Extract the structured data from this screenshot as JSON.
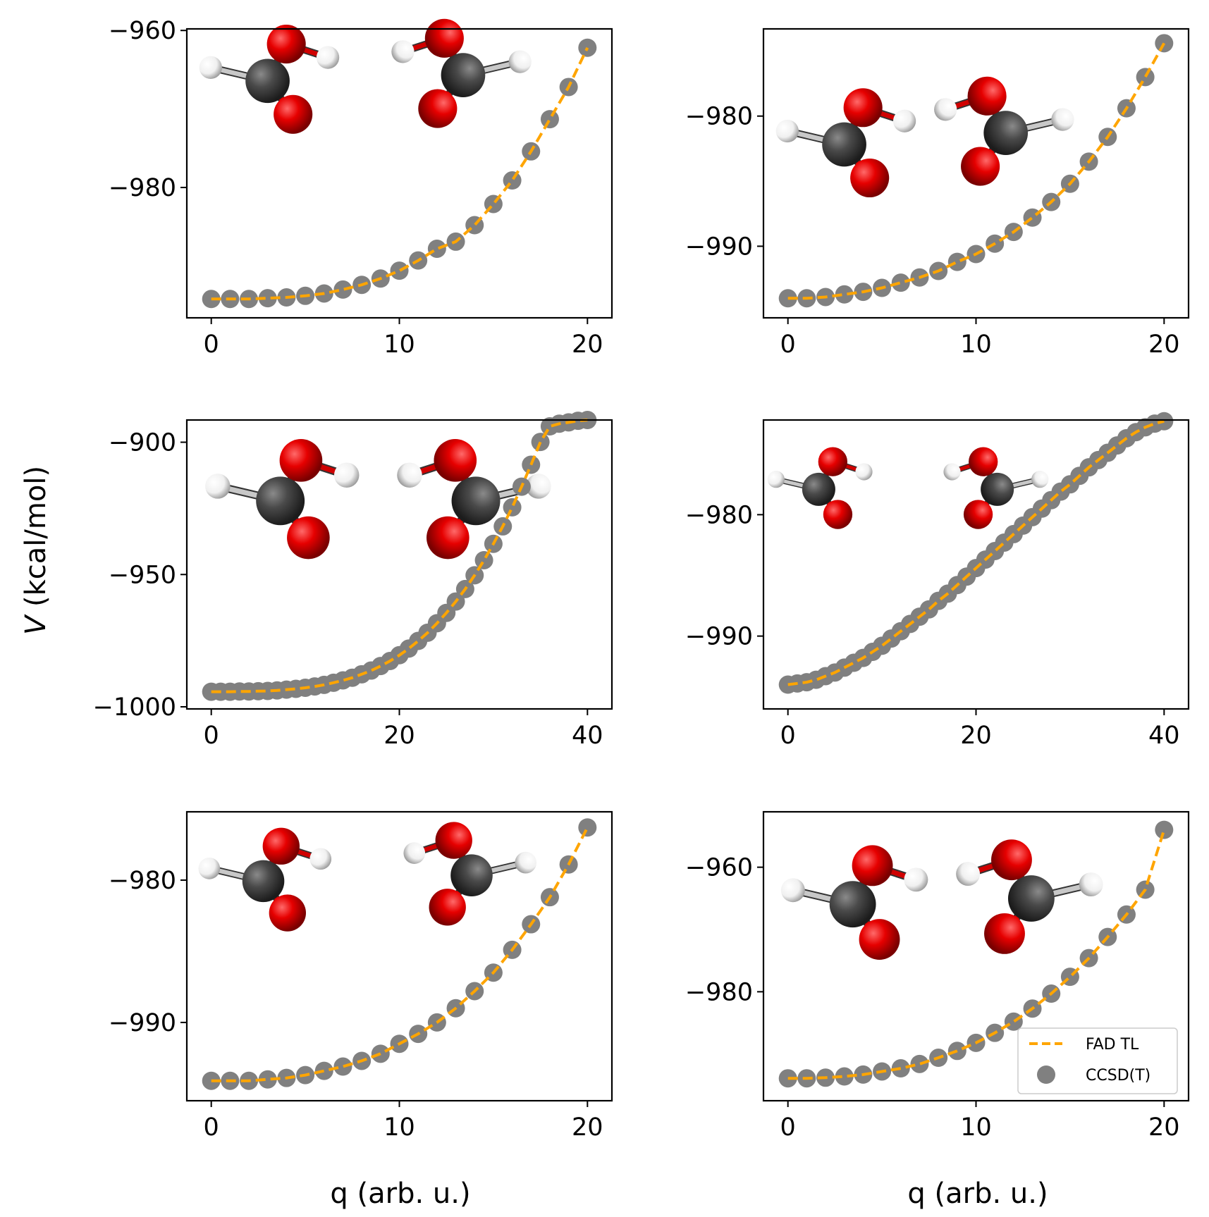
{
  "figure": {
    "ylabel_var": "V",
    "ylabel_units": " (kcal/mol)",
    "xlabel": "q (arb. u.)"
  },
  "colors": {
    "fit_line": "#FFA500",
    "ccsd_marker": "#808080",
    "carbon": "#4a4a4a",
    "oxygen": "#e60000",
    "hydrogen": "#f0f0f0"
  },
  "legend": {
    "items": [
      {
        "label": "FAD TL",
        "kind": "dashed-line"
      },
      {
        "label": "CCSD(T)",
        "kind": "marker"
      }
    ]
  },
  "chart_data": [
    {
      "type": "line",
      "panel": "top-left",
      "xlim": [
        -1.3,
        21.3
      ],
      "ylim": [
        -996.6,
        -959.8
      ],
      "xticks": [
        0,
        10,
        20
      ],
      "yticks": [
        -980,
        -960
      ],
      "x": [
        0,
        1,
        2,
        3,
        4,
        5,
        6,
        7,
        8,
        9,
        10,
        11,
        12,
        13,
        14,
        15,
        16,
        17,
        18,
        19,
        20
      ],
      "series": [
        {
          "name": "FAD TL",
          "style": "dashed",
          "values": [
            -994.2,
            -994.2,
            -994.2,
            -994.1,
            -994.0,
            -993.8,
            -993.5,
            -993.0,
            -992.4,
            -991.6,
            -990.6,
            -989.3,
            -987.8,
            -986.9,
            -984.8,
            -982.1,
            -979.1,
            -975.4,
            -971.3,
            -967.2,
            -962.2
          ]
        },
        {
          "name": "CCSD(T)",
          "style": "marker",
          "values": [
            -994.2,
            -994.2,
            -994.2,
            -994.1,
            -994.0,
            -993.8,
            -993.5,
            -993.0,
            -992.4,
            -991.6,
            -990.6,
            -989.3,
            -987.8,
            -986.9,
            -984.8,
            -982.1,
            -979.1,
            -975.4,
            -971.3,
            -967.2,
            -962.2
          ]
        }
      ],
      "molecules": [
        {
          "cx": 0.19,
          "cy": 0.18,
          "scale": 1.0,
          "flip": false
        },
        {
          "cx": 0.65,
          "cy": 0.16,
          "scale": 1.0,
          "flip": true
        }
      ]
    },
    {
      "type": "line",
      "panel": "top-right",
      "xlim": [
        -1.3,
        21.3
      ],
      "ylim": [
        -995.5,
        -973.3
      ],
      "xticks": [
        0,
        10,
        20
      ],
      "yticks": [
        -990,
        -980
      ],
      "x": [
        0,
        1,
        2,
        3,
        4,
        5,
        6,
        7,
        8,
        9,
        10,
        11,
        12,
        13,
        14,
        15,
        16,
        17,
        18,
        19,
        20
      ],
      "series": [
        {
          "name": "FAD TL",
          "style": "dashed",
          "values": [
            -994.0,
            -994.0,
            -993.9,
            -993.7,
            -993.5,
            -993.2,
            -992.8,
            -992.4,
            -991.9,
            -991.2,
            -990.6,
            -989.8,
            -988.9,
            -987.8,
            -986.6,
            -985.2,
            -983.5,
            -981.6,
            -979.4,
            -977.0,
            -974.4
          ]
        },
        {
          "name": "CCSD(T)",
          "style": "marker",
          "values": [
            -994.0,
            -994.0,
            -993.9,
            -993.7,
            -993.5,
            -993.2,
            -992.8,
            -992.4,
            -991.9,
            -991.2,
            -990.6,
            -989.8,
            -988.9,
            -987.8,
            -986.6,
            -985.2,
            -983.5,
            -981.6,
            -979.4,
            -977.0,
            -974.4
          ]
        }
      ],
      "molecules": [
        {
          "cx": 0.19,
          "cy": 0.4,
          "scale": 1.0,
          "flip": false
        },
        {
          "cx": 0.57,
          "cy": 0.36,
          "scale": 1.0,
          "flip": true
        }
      ]
    },
    {
      "type": "line",
      "panel": "middle-left",
      "xlim": [
        -2.6,
        42.6
      ],
      "ylim": [
        -1000.8,
        -891.6
      ],
      "xticks": [
        0,
        20,
        40
      ],
      "yticks": [
        -1000,
        -950,
        -900
      ],
      "x": [
        0,
        1,
        2,
        3,
        4,
        5,
        6,
        7,
        8,
        9,
        10,
        11,
        12,
        13,
        14,
        15,
        16,
        17,
        18,
        19,
        20,
        21,
        22,
        23,
        24,
        25,
        26,
        27,
        28,
        29,
        30,
        31,
        32,
        33,
        34,
        35,
        36,
        37,
        38,
        39,
        40
      ],
      "series": [
        {
          "name": "FAD TL",
          "style": "dashed",
          "values": [
            -994.3,
            -994.3,
            -994.3,
            -994.2,
            -994.2,
            -994.1,
            -994.0,
            -993.8,
            -993.5,
            -993.2,
            -992.8,
            -992.3,
            -991.7,
            -990.9,
            -990.0,
            -989.0,
            -987.7,
            -986.3,
            -984.6,
            -982.7,
            -980.5,
            -978.0,
            -975.1,
            -972.0,
            -968.4,
            -964.5,
            -960.2,
            -955.5,
            -950.3,
            -944.6,
            -938.4,
            -931.8,
            -924.6,
            -916.8,
            -908.5,
            -899.9,
            -894.0,
            -893.0,
            -892.5,
            -891.9,
            -891.6
          ]
        },
        {
          "name": "CCSD(T)",
          "style": "marker",
          "values": [
            -994.3,
            -994.3,
            -994.3,
            -994.2,
            -994.2,
            -994.1,
            -994.0,
            -993.8,
            -993.5,
            -993.2,
            -992.8,
            -992.3,
            -991.7,
            -990.9,
            -990.0,
            -989.0,
            -987.7,
            -986.3,
            -984.6,
            -982.7,
            -980.5,
            -978.0,
            -975.1,
            -972.0,
            -968.4,
            -964.5,
            -960.2,
            -955.5,
            -950.3,
            -944.6,
            -938.4,
            -931.8,
            -924.6,
            -916.8,
            -908.5,
            -899.9,
            -894.0,
            -893.0,
            -892.5,
            -891.9,
            -891.6
          ]
        }
      ],
      "molecules": [
        {
          "cx": 0.22,
          "cy": 0.28,
          "scale": 1.1,
          "flip": false
        },
        {
          "cx": 0.68,
          "cy": 0.28,
          "scale": 1.1,
          "flip": true
        }
      ]
    },
    {
      "type": "line",
      "panel": "middle-right",
      "xlim": [
        -2.6,
        42.6
      ],
      "ylim": [
        -996.0,
        -972.2
      ],
      "xticks": [
        0,
        20,
        40
      ],
      "yticks": [
        -990,
        -980
      ],
      "x": [
        0,
        1,
        2,
        3,
        4,
        5,
        6,
        7,
        8,
        9,
        10,
        11,
        12,
        13,
        14,
        15,
        16,
        17,
        18,
        19,
        20,
        21,
        22,
        23,
        24,
        25,
        26,
        27,
        28,
        29,
        30,
        31,
        32,
        33,
        34,
        35,
        36,
        37,
        38,
        39,
        40
      ],
      "series": [
        {
          "name": "FAD TL",
          "style": "dashed",
          "values": [
            -994.0,
            -993.9,
            -993.8,
            -993.6,
            -993.3,
            -993.0,
            -992.6,
            -992.2,
            -991.8,
            -991.3,
            -990.8,
            -990.2,
            -989.6,
            -989.0,
            -988.4,
            -987.8,
            -987.1,
            -986.5,
            -985.8,
            -985.1,
            -984.4,
            -983.7,
            -983.0,
            -982.3,
            -981.6,
            -980.9,
            -980.2,
            -979.5,
            -978.8,
            -978.1,
            -977.5,
            -976.8,
            -976.1,
            -975.5,
            -974.9,
            -974.3,
            -973.7,
            -973.2,
            -972.8,
            -972.5,
            -972.3
          ]
        },
        {
          "name": "CCSD(T)",
          "style": "marker",
          "values": [
            -994.0,
            -993.9,
            -993.8,
            -993.6,
            -993.3,
            -993.0,
            -992.6,
            -992.2,
            -991.8,
            -991.3,
            -990.8,
            -990.2,
            -989.6,
            -989.0,
            -988.4,
            -987.8,
            -987.1,
            -986.5,
            -985.8,
            -985.1,
            -984.4,
            -983.7,
            -983.0,
            -982.3,
            -981.6,
            -980.9,
            -980.2,
            -979.5,
            -978.8,
            -978.1,
            -977.5,
            -976.8,
            -976.1,
            -975.5,
            -974.9,
            -974.3,
            -973.7,
            -973.2,
            -972.8,
            -972.5,
            -972.3
          ]
        }
      ],
      "molecules": [
        {
          "cx": 0.13,
          "cy": 0.24,
          "scale": 0.75,
          "flip": false
        },
        {
          "cx": 0.55,
          "cy": 0.24,
          "scale": 0.75,
          "flip": true
        }
      ]
    },
    {
      "type": "line",
      "panel": "bottom-left",
      "xlim": [
        -1.3,
        21.3
      ],
      "ylim": [
        -995.5,
        -975.2
      ],
      "xticks": [
        0,
        10,
        20
      ],
      "yticks": [
        -990,
        -980
      ],
      "x": [
        0,
        1,
        2,
        3,
        4,
        5,
        6,
        7,
        8,
        9,
        10,
        11,
        12,
        13,
        14,
        15,
        16,
        17,
        18,
        19,
        20
      ],
      "series": [
        {
          "name": "FAD TL",
          "style": "dashed",
          "values": [
            -994.1,
            -994.1,
            -994.1,
            -994.0,
            -993.9,
            -993.7,
            -993.4,
            -993.1,
            -992.7,
            -992.2,
            -991.5,
            -990.8,
            -990.0,
            -989.0,
            -987.8,
            -986.5,
            -984.9,
            -983.1,
            -981.2,
            -978.9,
            -976.3
          ]
        },
        {
          "name": "CCSD(T)",
          "style": "marker",
          "values": [
            -994.1,
            -994.1,
            -994.1,
            -994.0,
            -993.9,
            -993.7,
            -993.4,
            -993.1,
            -992.7,
            -992.2,
            -991.5,
            -990.8,
            -990.0,
            -989.0,
            -987.8,
            -986.5,
            -984.9,
            -983.1,
            -981.2,
            -978.9,
            -976.3
          ]
        }
      ],
      "molecules": [
        {
          "cx": 0.18,
          "cy": 0.24,
          "scale": 0.95,
          "flip": false
        },
        {
          "cx": 0.67,
          "cy": 0.22,
          "scale": 0.95,
          "flip": true
        }
      ]
    },
    {
      "type": "line",
      "panel": "bottom-right",
      "xlim": [
        -1.3,
        21.3
      ],
      "ylim": [
        -997.5,
        -951.1
      ],
      "xticks": [
        0,
        10,
        20
      ],
      "yticks": [
        -980,
        -960
      ],
      "x": [
        0,
        1,
        2,
        3,
        4,
        5,
        6,
        7,
        8,
        9,
        10,
        11,
        12,
        13,
        14,
        15,
        16,
        17,
        18,
        19,
        20
      ],
      "series": [
        {
          "name": "FAD TL",
          "style": "dashed",
          "values": [
            -993.9,
            -993.9,
            -993.8,
            -993.6,
            -993.3,
            -992.8,
            -992.3,
            -991.6,
            -990.6,
            -989.5,
            -988.2,
            -986.6,
            -984.8,
            -982.7,
            -980.3,
            -977.6,
            -974.6,
            -971.2,
            -967.6,
            -963.6,
            -954.0
          ]
        },
        {
          "name": "CCSD(T)",
          "style": "marker",
          "values": [
            -993.9,
            -993.9,
            -993.8,
            -993.6,
            -993.3,
            -992.8,
            -992.3,
            -991.6,
            -990.6,
            -989.5,
            -988.2,
            -986.6,
            -984.8,
            -982.7,
            -980.3,
            -977.6,
            -974.6,
            -971.2,
            -967.6,
            -963.6,
            -954.0
          ]
        }
      ],
      "molecules": [
        {
          "cx": 0.21,
          "cy": 0.32,
          "scale": 1.05,
          "flip": false
        },
        {
          "cx": 0.63,
          "cy": 0.3,
          "scale": 1.05,
          "flip": true
        }
      ]
    }
  ]
}
